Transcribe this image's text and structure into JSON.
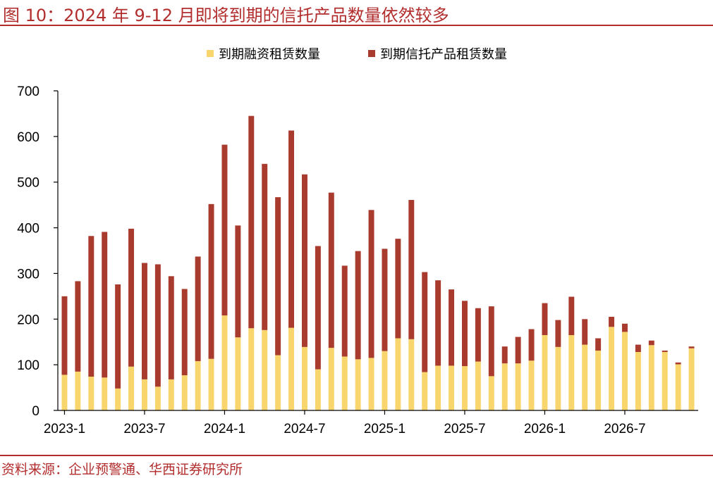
{
  "header": {
    "title": "图 10：2024 年 9-12 月即将到期的信托产品数量依然较多"
  },
  "footer": {
    "source": "资料来源：企业预警通、华西证券研究所"
  },
  "colors": {
    "accent": "#b22d2d",
    "series1": "#f9d56e",
    "series2": "#a83b2d"
  },
  "chart_data": {
    "type": "bar",
    "stacked": true,
    "ylim": [
      0,
      700
    ],
    "yticks": [
      0,
      100,
      200,
      300,
      400,
      500,
      600,
      700
    ],
    "xtick_labels": [
      "2023-1",
      "2023-7",
      "2024-1",
      "2024-7",
      "2025-1",
      "2025-7",
      "2026-1",
      "2026-7"
    ],
    "legend_position": "top-center",
    "grid": false,
    "categories": [
      "2023-1",
      "2023-2",
      "2023-3",
      "2023-4",
      "2023-5",
      "2023-6",
      "2023-7",
      "2023-8",
      "2023-9",
      "2023-10",
      "2023-11",
      "2023-12",
      "2024-1",
      "2024-2",
      "2024-3",
      "2024-4",
      "2024-5",
      "2024-6",
      "2024-7",
      "2024-8",
      "2024-9",
      "2024-10",
      "2024-11",
      "2024-12",
      "2025-1",
      "2025-2",
      "2025-3",
      "2025-4",
      "2025-5",
      "2025-6",
      "2025-7",
      "2025-8",
      "2025-9",
      "2025-10",
      "2025-11",
      "2025-12",
      "2026-1",
      "2026-2",
      "2026-3",
      "2026-4",
      "2026-5",
      "2026-6",
      "2026-7",
      "2026-8",
      "2026-9",
      "2026-10",
      "2026-11",
      "2026-12"
    ],
    "series": [
      {
        "name": "到期融资租赁数量",
        "color": "#f9d56e",
        "values": [
          78,
          85,
          74,
          72,
          48,
          96,
          68,
          52,
          68,
          77,
          108,
          113,
          208,
          160,
          180,
          176,
          121,
          181,
          139,
          90,
          137,
          118,
          112,
          115,
          130,
          158,
          156,
          84,
          98,
          98,
          97,
          107,
          75,
          103,
          103,
          109,
          165,
          139,
          165,
          144,
          131,
          183,
          172,
          128,
          143,
          128,
          101,
          136
        ]
      },
      {
        "name": "到期信托产品租赁数量",
        "color": "#a83b2d",
        "values": [
          172,
          198,
          308,
          319,
          228,
          302,
          255,
          268,
          226,
          189,
          229,
          339,
          374,
          245,
          465,
          364,
          346,
          432,
          378,
          270,
          340,
          199,
          237,
          324,
          224,
          218,
          305,
          219,
          187,
          167,
          143,
          117,
          153,
          37,
          58,
          69,
          70,
          59,
          84,
          56,
          27,
          22,
          18,
          16,
          10,
          3,
          4,
          4
        ]
      }
    ]
  }
}
